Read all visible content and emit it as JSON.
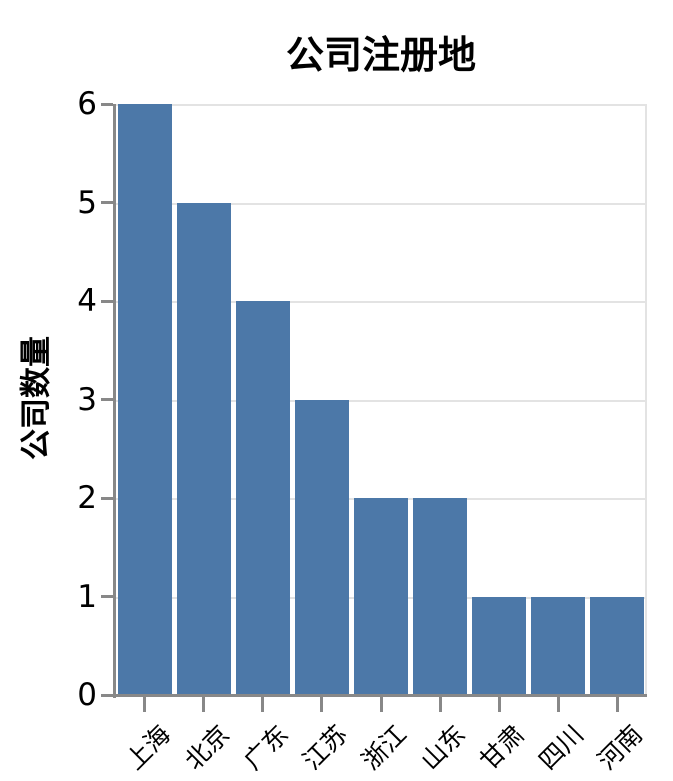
{
  "chart_data": {
    "type": "bar",
    "title": "公司注册地",
    "xlabel": "",
    "ylabel": "公司数量",
    "categories": [
      "上海",
      "北京",
      "广东",
      "江苏",
      "浙江",
      "山东",
      "甘肃",
      "四川",
      "河南"
    ],
    "values": [
      6,
      5,
      4,
      3,
      2,
      2,
      1,
      1,
      1
    ],
    "ylim": [
      0,
      6
    ],
    "yticks": [
      0,
      1,
      2,
      3,
      4,
      5,
      6
    ],
    "grid": true,
    "legend": "none",
    "x_label_angle": -45,
    "colors": {
      "bar": "#4C78A8",
      "axis": "#888888",
      "grid": "#e3e3e3",
      "text": "#000000",
      "background": "#ffffff"
    }
  }
}
